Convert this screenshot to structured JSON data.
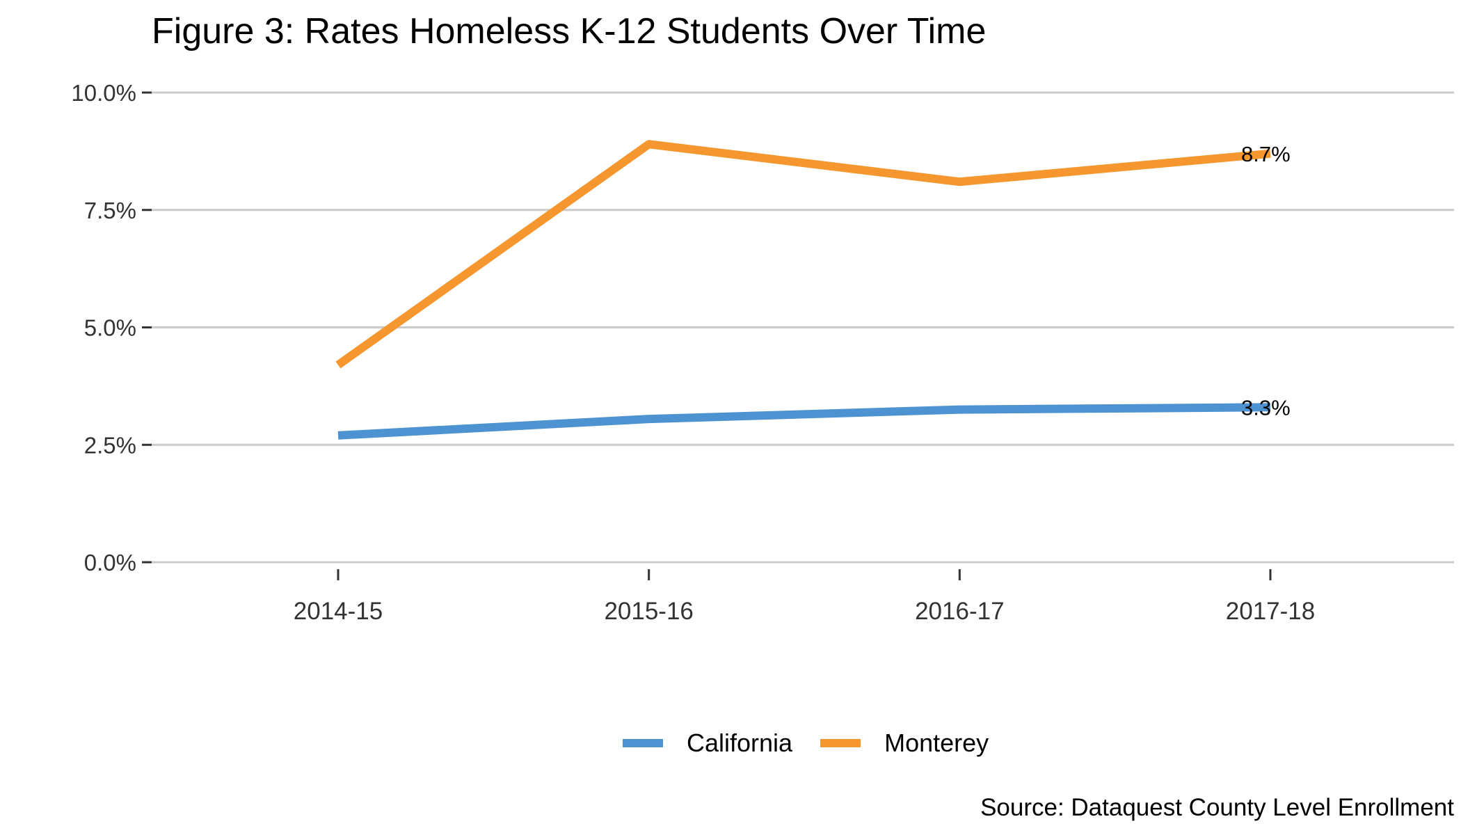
{
  "chart_data": {
    "type": "line",
    "title": "Figure 3: Rates Homeless K-12 Students Over Time",
    "caption": "Source: Dataquest County Level Enrollment",
    "xlabel": "",
    "ylabel": "",
    "categories": [
      "2014-15",
      "2015-16",
      "2016-17",
      "2017-18"
    ],
    "y_ticks": [
      0.0,
      2.5,
      5.0,
      7.5,
      10.0
    ],
    "y_tick_labels": [
      "0.0%",
      "2.5%",
      "5.0%",
      "7.5%",
      "10.0%"
    ],
    "ylim": [
      0,
      10
    ],
    "grid": "horizontal",
    "legend_position": "bottom",
    "series": [
      {
        "name": "California",
        "color": "#4E93D1",
        "values": [
          2.7,
          3.05,
          3.25,
          3.3
        ],
        "end_label": "3.3%"
      },
      {
        "name": "Monterey",
        "color": "#F5962E",
        "values": [
          4.2,
          8.9,
          8.1,
          8.7
        ],
        "end_label": "8.7%"
      }
    ]
  }
}
